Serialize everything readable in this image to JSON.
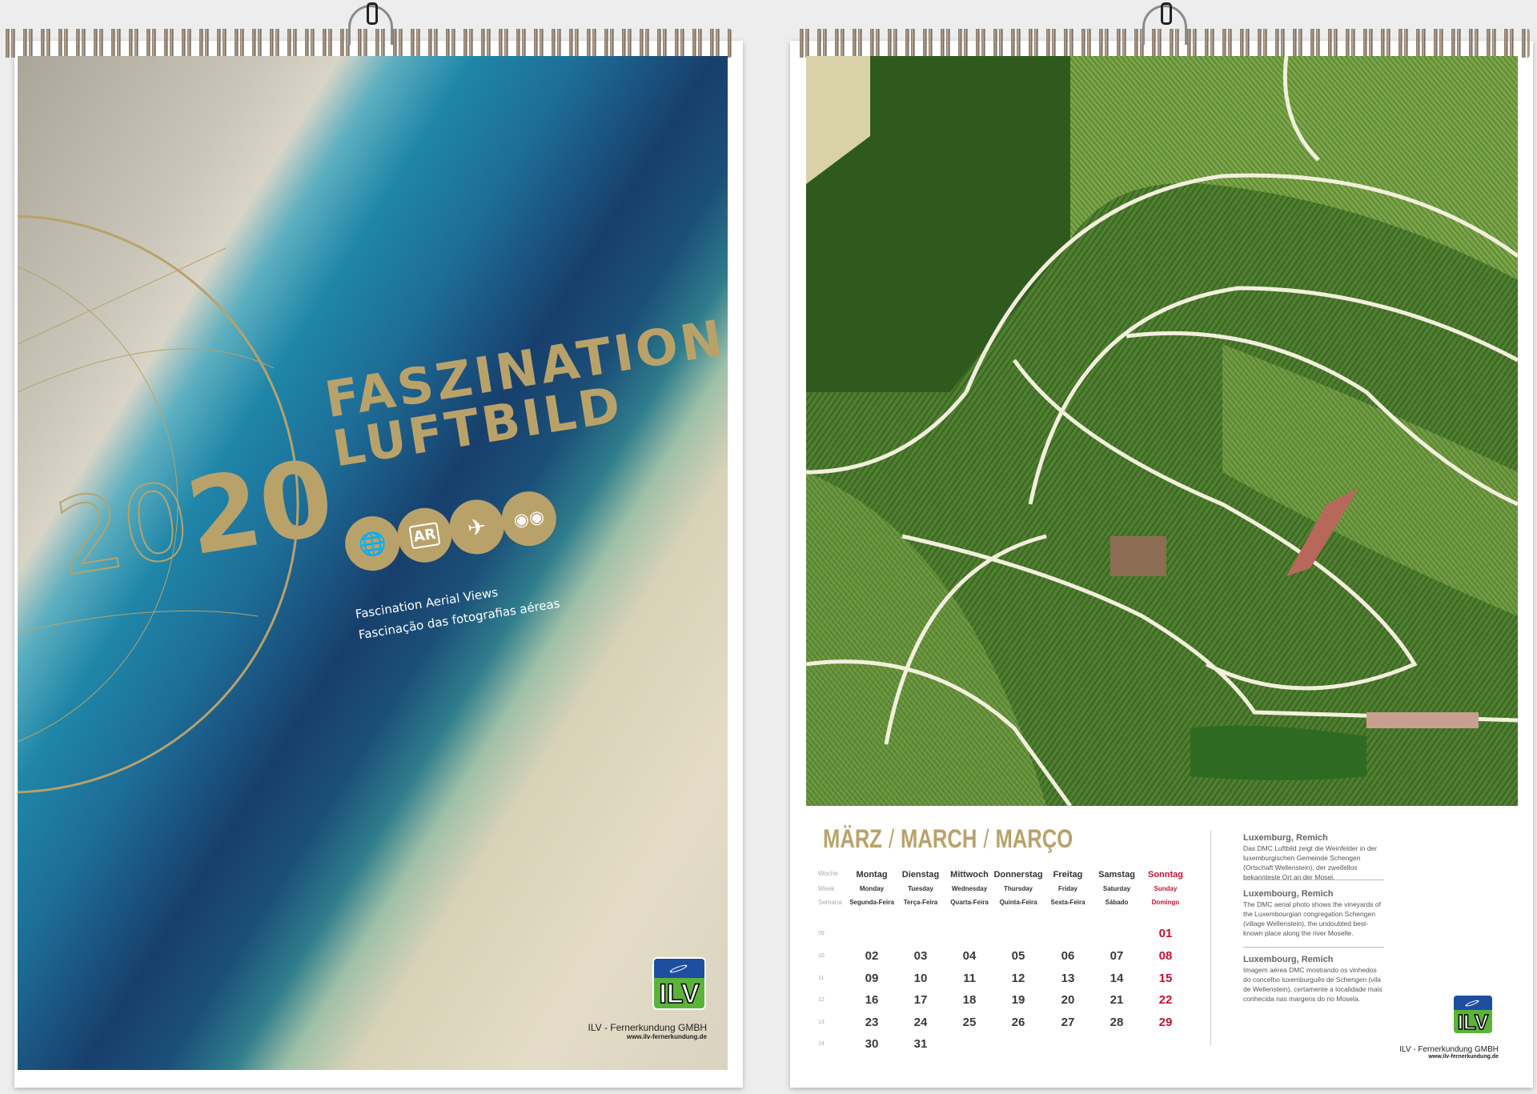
{
  "cover": {
    "title_line1": "FASZINATION",
    "title_line2": "LUFTBILD",
    "year_outline": "20",
    "year_solid": "20",
    "icons": [
      "globe-icon",
      "ar-phone-icon",
      "airplane-icon",
      "3d-glasses-icon"
    ],
    "ar_label": "AR",
    "subtitle_en": "Fasсination Aerial Views",
    "subtitle_pt": "Fascinação das fotografias aéreas",
    "logo_text": "ILV",
    "company": "ILV - Fernerkundung GMBH",
    "website": "www.ilv-fernerkundung.de"
  },
  "calendar": {
    "month_de": "MÄRZ",
    "month_en": "MARCH",
    "month_pt": "MARÇO",
    "separator": "/",
    "week_labels": [
      "Woche",
      "Week",
      "Semana"
    ],
    "days": [
      {
        "de": "Montag",
        "en": "Monday",
        "pt": "Segunda-Feira"
      },
      {
        "de": "Dienstag",
        "en": "Tuesday",
        "pt": "Terça-Feira"
      },
      {
        "de": "Mittwoch",
        "en": "Wednesday",
        "pt": "Quarta-Feira"
      },
      {
        "de": "Donnerstag",
        "en": "Thursday",
        "pt": "Quinta-Feira"
      },
      {
        "de": "Freitag",
        "en": "Friday",
        "pt": "Sexta-Feira"
      },
      {
        "de": "Samstag",
        "en": "Saturday",
        "pt": "Sábado"
      },
      {
        "de": "Sonntag",
        "en": "Sunday",
        "pt": "Domingo"
      }
    ],
    "weeks": [
      {
        "week": "09",
        "dates": [
          "",
          "",
          "",
          "",
          "",
          "",
          "01"
        ]
      },
      {
        "week": "10",
        "dates": [
          "02",
          "03",
          "04",
          "05",
          "06",
          "07",
          "08"
        ]
      },
      {
        "week": "11",
        "dates": [
          "09",
          "10",
          "11",
          "12",
          "13",
          "14",
          "15"
        ]
      },
      {
        "week": "12",
        "dates": [
          "16",
          "17",
          "18",
          "19",
          "20",
          "21",
          "22"
        ]
      },
      {
        "week": "13",
        "dates": [
          "23",
          "24",
          "25",
          "26",
          "27",
          "28",
          "29"
        ]
      },
      {
        "week": "14",
        "dates": [
          "30",
          "31",
          "",
          "",
          "",
          "",
          ""
        ]
      }
    ],
    "sunday_color": "#c4122f",
    "accent_color": "#b9a26a"
  },
  "descriptions": [
    {
      "heading": "Luxemburg, Remich",
      "text": "Das DMC Luftbild zeigt die Weinfelder in der luxemburgischen Gemeinde Schengen (Ortschaft Wellenstein), der zweifellos bekannteste Ort an der Mosel."
    },
    {
      "heading": "Luxembourg, Remich",
      "text": "The DMC aerial photo shows the vineyards of the Luxembourgian congregation Schengen (village Wellenstein), the undoubted best-known place along the river Moselle."
    },
    {
      "heading": "Luxembourg, Remich",
      "text": "Imagem aérea DMC mostrando os vinhedos do concelho luxemburguês de Schengen (vila de Wellenstein), certamente a localidade mais conhecida nas margens do rio Mosela."
    }
  ],
  "footer": {
    "logo_text": "ILV",
    "company": "ILV - Fernerkundung GMBH",
    "website": "www.ilv-fernerkundung.de"
  }
}
